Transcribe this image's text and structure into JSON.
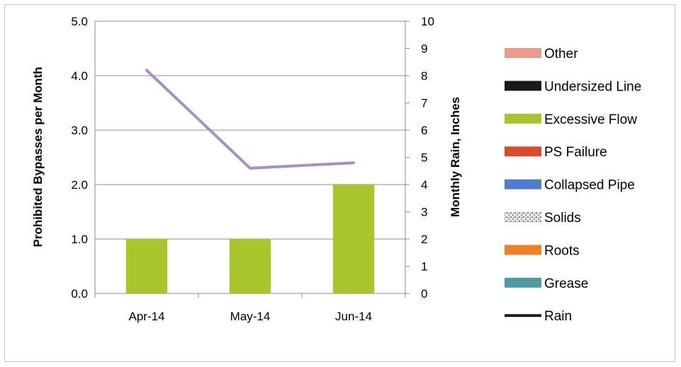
{
  "chart_data": {
    "type": "bar",
    "categories": [
      "Apr-14",
      "May-14",
      "Jun-14"
    ],
    "series": [
      {
        "name": "Other",
        "axis": "left",
        "color": "#e8998a",
        "values": [
          0,
          0,
          0
        ]
      },
      {
        "name": "Undersized Line",
        "axis": "left",
        "color": "#1a1a1a",
        "values": [
          0,
          0,
          0
        ]
      },
      {
        "name": "Excessive Flow",
        "axis": "left",
        "color": "#a6c62b",
        "values": [
          1.0,
          1.0,
          2.0
        ]
      },
      {
        "name": "PS Failure",
        "axis": "left",
        "color": "#d94b2b",
        "values": [
          0,
          0,
          0
        ]
      },
      {
        "name": "Collapsed Pipe",
        "axis": "left",
        "color": "#4f7ccc",
        "values": [
          0,
          0,
          0
        ]
      },
      {
        "name": "Solids",
        "axis": "left",
        "color": "#bfbfbf",
        "pattern": "speckle",
        "values": [
          0,
          0,
          0
        ]
      },
      {
        "name": "Roots",
        "axis": "left",
        "color": "#f07f2a",
        "values": [
          0,
          0,
          0
        ]
      },
      {
        "name": "Grease",
        "axis": "left",
        "color": "#4e9aa3",
        "values": [
          0,
          0,
          0
        ]
      },
      {
        "name": "Rain",
        "axis": "right",
        "type": "line",
        "color": "#a78fc4",
        "legend_color": "#1a1a1a",
        "values": [
          8.2,
          4.6,
          4.8
        ]
      }
    ],
    "ylabel": "Prohibited Bypasses per Month",
    "y2label": "Monthly Rain, Inches",
    "ylim": [
      0,
      5
    ],
    "y2lim": [
      0,
      10
    ],
    "yticks": [
      "0.0",
      "1.0",
      "2.0",
      "3.0",
      "4.0",
      "5.0"
    ],
    "y2ticks": [
      "0",
      "1",
      "2",
      "3",
      "4",
      "5",
      "6",
      "7",
      "8",
      "9",
      "10"
    ],
    "grid": true,
    "legend_position": "right"
  }
}
